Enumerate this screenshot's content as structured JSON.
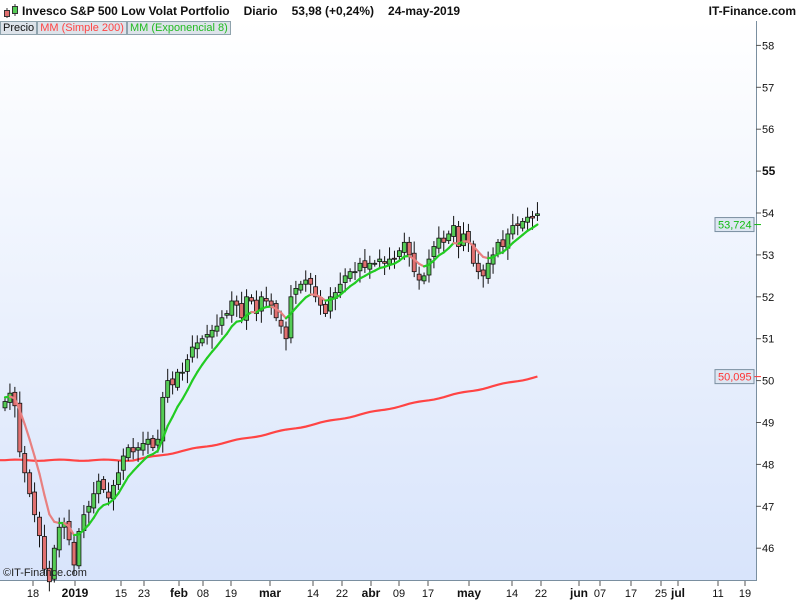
{
  "header": {
    "instrument": "Invesco S&P 500 Low Volat Portfolio",
    "period": "Diario",
    "quote": "53,98 (+0,24%)",
    "date": "24-may-2019",
    "brand": "IT-Finance.com"
  },
  "legend": {
    "price": "Precio",
    "sma": "MM (Simple 200)",
    "ema": "MM (Exponencial 8)"
  },
  "copyright": "©IT-Finance.com",
  "colors": {
    "up": "#55cc55",
    "down": "#e07070",
    "sma": "#ff4444",
    "ema": "#22cc22",
    "ema_falling": "#e88080",
    "bg_top": "#ffffff",
    "bg_bottom": "#d8e4fb"
  },
  "chart_data": {
    "type": "candlestick",
    "ylim": [
      45.2,
      58.5
    ],
    "y_ticks": [
      "46",
      "47",
      "48",
      "49",
      "50",
      "51",
      "52",
      "53",
      "54",
      "55",
      "56",
      "57",
      "58"
    ],
    "x_ticks": [
      {
        "label": "18",
        "bold": false
      },
      {
        "label": "2019",
        "bold": true
      },
      {
        "label": "15",
        "bold": false
      },
      {
        "label": "23",
        "bold": false
      },
      {
        "label": "feb",
        "bold": true
      },
      {
        "label": "08",
        "bold": false
      },
      {
        "label": "19",
        "bold": false
      },
      {
        "label": "mar",
        "bold": true
      },
      {
        "label": "14",
        "bold": false
      },
      {
        "label": "22",
        "bold": false
      },
      {
        "label": "abr",
        "bold": true
      },
      {
        "label": "09",
        "bold": false
      },
      {
        "label": "17",
        "bold": false
      },
      {
        "label": "may",
        "bold": true
      },
      {
        "label": "14",
        "bold": false
      },
      {
        "label": "22",
        "bold": false
      },
      {
        "label": "jun",
        "bold": true
      },
      {
        "label": "07",
        "bold": false
      },
      {
        "label": "17",
        "bold": false
      },
      {
        "label": "25",
        "bold": false
      },
      {
        "label": "jul",
        "bold": true
      },
      {
        "label": "11",
        "bold": false
      },
      {
        "label": "19",
        "bold": false
      }
    ],
    "closes": [
      49.5,
      49.7,
      49.4,
      48.3,
      47.8,
      47.3,
      46.8,
      46.3,
      45.5,
      45.2,
      46.0,
      46.5,
      46.6,
      46.2,
      45.6,
      46.4,
      46.8,
      47.0,
      47.3,
      47.6,
      47.4,
      47.2,
      47.5,
      47.8,
      48.2,
      48.4,
      48.3,
      48.4,
      48.5,
      48.6,
      48.4,
      48.6,
      49.6,
      50.0,
      49.9,
      50.2,
      50.2,
      50.5,
      50.8,
      50.9,
      51.0,
      51.1,
      51.2,
      51.3,
      51.5,
      51.6,
      51.9,
      51.8,
      51.5,
      52.0,
      51.9,
      51.6,
      52.0,
      51.9,
      51.8,
      51.5,
      51.3,
      51.0,
      52.0,
      52.2,
      52.3,
      52.4,
      52.3,
      52.0,
      51.8,
      51.6,
      52.0,
      52.1,
      52.3,
      52.5,
      52.6,
      52.6,
      52.8,
      52.7,
      52.8,
      52.8,
      52.9,
      52.8,
      52.9,
      52.9,
      53.1,
      53.3,
      53.0,
      52.6,
      52.4,
      52.5,
      52.9,
      53.2,
      53.4,
      53.3,
      53.5,
      53.7,
      53.2,
      53.5,
      53.3,
      52.8,
      52.6,
      52.5,
      52.8,
      53.0,
      53.3,
      53.2,
      53.5,
      53.7,
      53.7,
      53.8,
      53.9,
      53.88,
      53.98
    ],
    "sma200_start": 48.1,
    "sma200_last": 50.095,
    "ema8_last": 53.724,
    "last_labels": {
      "ema": "53,724",
      "sma": "50,095"
    }
  }
}
